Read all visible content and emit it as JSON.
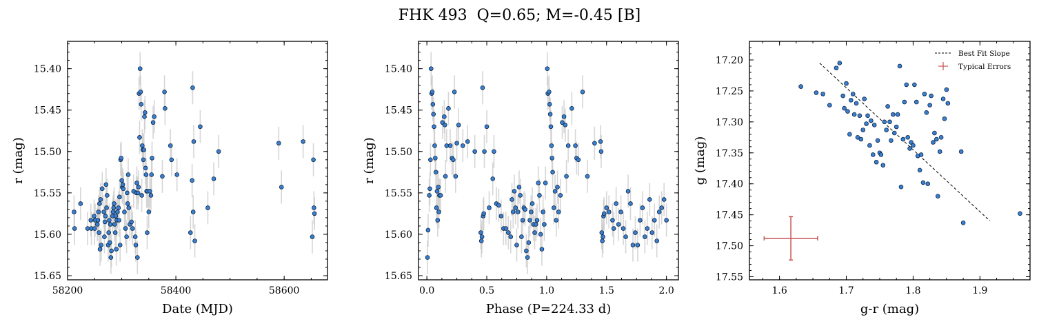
{
  "figure": {
    "title": "FHK 493  Q=0.65; M=-0.45 [B]"
  },
  "colors": {
    "point": "#3a7fd0",
    "point_edge": "#0c2340",
    "errorbar": "#c8c8c8",
    "typical_error": "#c9504f",
    "fit_line": "#000000"
  },
  "chart_data": [
    {
      "type": "scatter",
      "panel": "light-curve-date",
      "title": "",
      "xlabel": "Date (MJD)",
      "ylabel": "r (mag)",
      "xlim": [
        58200,
        58680
      ],
      "ylim": [
        15.655,
        15.367
      ],
      "y_inverted": true,
      "xticks": [
        58200,
        58400,
        58600
      ],
      "yticks": [
        15.4,
        15.45,
        15.5,
        15.55,
        15.6,
        15.65
      ],
      "ytick_labels": [
        "15.40",
        "15.45",
        "15.50",
        "15.55",
        "15.60",
        "15.65"
      ],
      "y_error": 0.02,
      "grid": false,
      "x": [
        58212,
        58213,
        58224,
        58237,
        58243,
        58244,
        58249,
        58250,
        58251,
        58255,
        58256,
        58257,
        58258,
        58259,
        58260,
        58261,
        58262,
        58264,
        58267,
        58268,
        58269,
        58270,
        58271,
        58272,
        58273,
        58275,
        58276,
        58277,
        58278,
        58279,
        58280,
        58281,
        58283,
        58284,
        58285,
        58286,
        58287,
        58288,
        58289,
        58290,
        58291,
        58292,
        58294,
        58295,
        58296,
        58297,
        58298,
        58299,
        58300,
        58301,
        58302,
        58303,
        58305,
        58307,
        58309,
        58310,
        58311,
        58312,
        58313,
        58315,
        58318,
        58320,
        58322,
        58325,
        58326,
        58327,
        58328,
        58329,
        58330,
        58331,
        58332,
        58333,
        58334,
        58335,
        58336,
        58337,
        58338,
        58339,
        58340,
        58341,
        58342,
        58343,
        58344,
        58345,
        58346,
        58347,
        58348,
        58350,
        58352,
        58354,
        58355,
        58356,
        58358,
        58360,
        58375,
        58379,
        58380,
        58390,
        58392,
        58402,
        58427,
        58430,
        58431,
        58432,
        58433,
        58435,
        58445,
        58459,
        58470,
        58479,
        58590,
        58595,
        58635,
        58652,
        58654,
        58655,
        58656
      ],
      "y": [
        15.573,
        15.593,
        15.563,
        15.593,
        15.583,
        15.593,
        15.578,
        15.593,
        15.583,
        15.588,
        15.583,
        15.573,
        15.598,
        15.563,
        15.618,
        15.558,
        15.613,
        15.545,
        15.573,
        15.603,
        15.585,
        15.578,
        15.54,
        15.568,
        15.553,
        15.613,
        15.598,
        15.583,
        15.61,
        15.588,
        15.628,
        15.62,
        15.578,
        15.573,
        15.568,
        15.563,
        15.588,
        15.598,
        15.578,
        15.618,
        15.583,
        15.573,
        15.568,
        15.583,
        15.555,
        15.613,
        15.51,
        15.508,
        15.535,
        15.543,
        15.54,
        15.545,
        15.573,
        15.593,
        15.603,
        15.55,
        15.563,
        15.528,
        15.568,
        15.588,
        15.585,
        15.593,
        15.548,
        15.603,
        15.613,
        15.55,
        15.538,
        15.628,
        15.55,
        15.543,
        15.43,
        15.483,
        15.4,
        15.428,
        15.443,
        15.553,
        15.493,
        15.498,
        15.51,
        15.498,
        15.458,
        15.453,
        15.52,
        15.528,
        15.548,
        15.598,
        15.548,
        15.573,
        15.548,
        15.553,
        15.528,
        15.508,
        15.465,
        15.458,
        15.53,
        15.428,
        15.448,
        15.493,
        15.51,
        15.528,
        15.598,
        15.535,
        15.423,
        15.573,
        15.488,
        15.608,
        15.47,
        15.568,
        15.533,
        15.5,
        15.49,
        15.543,
        15.488,
        15.603,
        15.51,
        15.568,
        15.575
      ]
    },
    {
      "type": "scatter",
      "panel": "light-curve-phase",
      "title": "",
      "xlabel": "Phase (P=224.33 d)",
      "ylabel": "r (mag)",
      "xlim": [
        -0.07,
        2.1
      ],
      "ylim": [
        15.655,
        15.367
      ],
      "y_inverted": true,
      "xticks": [
        0.0,
        0.5,
        1.0,
        1.5,
        2.0
      ],
      "xtick_labels": [
        "0.0",
        "0.5",
        "1.0",
        "1.5",
        "2.0"
      ],
      "yticks": [
        15.4,
        15.45,
        15.5,
        15.55,
        15.6,
        15.65
      ],
      "ytick_labels": [
        "15.40",
        "15.45",
        "15.50",
        "15.55",
        "15.60",
        "15.65"
      ],
      "y_error": 0.02,
      "grid": false,
      "x": [
        0.005,
        0.01,
        0.02,
        0.025,
        0.03,
        0.035,
        0.04,
        0.045,
        0.05,
        0.055,
        0.06,
        0.065,
        0.07,
        0.075,
        0.08,
        0.085,
        0.09,
        0.095,
        0.1,
        0.105,
        0.115,
        0.13,
        0.145,
        0.15,
        0.155,
        0.165,
        0.18,
        0.195,
        0.21,
        0.22,
        0.23,
        0.24,
        0.25,
        0.265,
        0.3,
        0.34,
        0.4,
        0.45,
        0.455,
        0.46,
        0.465,
        0.47,
        0.475,
        0.48,
        0.5,
        0.52,
        0.55,
        0.56,
        0.58,
        0.6,
        0.62,
        0.64,
        0.66,
        0.68,
        0.7,
        0.71,
        0.72,
        0.73,
        0.74,
        0.75,
        0.76,
        0.77,
        0.78,
        0.79,
        0.8,
        0.81,
        0.82,
        0.83,
        0.84,
        0.85,
        0.86,
        0.87,
        0.88,
        0.89,
        0.9,
        0.91,
        0.92,
        0.93,
        0.94,
        0.95,
        0.96,
        0.97,
        0.98,
        0.99,
        1.005,
        1.01,
        1.02,
        1.025,
        1.03,
        1.035,
        1.04,
        1.045,
        1.05,
        1.06,
        1.07,
        1.08,
        1.09,
        1.1,
        1.115,
        1.13,
        1.145,
        1.155,
        1.165,
        1.18,
        1.21,
        1.24,
        1.25,
        1.265,
        1.3,
        1.34,
        1.4,
        1.45,
        1.455,
        1.46,
        1.465,
        1.47,
        1.475,
        1.48,
        1.5,
        1.52,
        1.55,
        1.56,
        1.58,
        1.6,
        1.62,
        1.64,
        1.66,
        1.68,
        1.7,
        1.72,
        1.74,
        1.76,
        1.78,
        1.8,
        1.82,
        1.84,
        1.86,
        1.88,
        1.9,
        1.92,
        1.94,
        1.96,
        1.98,
        2.0
      ],
      "y": [
        15.628,
        15.595,
        15.553,
        15.545,
        15.51,
        15.4,
        15.43,
        15.428,
        15.443,
        15.455,
        15.47,
        15.493,
        15.508,
        15.525,
        15.568,
        15.548,
        15.583,
        15.543,
        15.573,
        15.553,
        15.553,
        15.465,
        15.458,
        15.468,
        15.53,
        15.493,
        15.448,
        15.493,
        15.508,
        15.51,
        15.428,
        15.53,
        15.49,
        15.468,
        15.493,
        15.488,
        15.5,
        15.598,
        15.608,
        15.603,
        15.423,
        15.578,
        15.575,
        15.5,
        15.47,
        15.568,
        15.533,
        15.5,
        15.563,
        15.565,
        15.578,
        15.593,
        15.593,
        15.598,
        15.603,
        15.558,
        15.573,
        15.548,
        15.568,
        15.613,
        15.573,
        15.543,
        15.553,
        15.603,
        15.583,
        15.568,
        15.57,
        15.62,
        15.628,
        15.61,
        15.583,
        15.573,
        15.563,
        15.588,
        15.598,
        15.588,
        15.583,
        15.538,
        15.553,
        15.6,
        15.618,
        15.573,
        15.588,
        15.538,
        15.4,
        15.43,
        15.428,
        15.443,
        15.455,
        15.47,
        15.493,
        15.508,
        15.525,
        15.568,
        15.548,
        15.583,
        15.543,
        15.573,
        15.553,
        15.465,
        15.458,
        15.468,
        15.53,
        15.493,
        15.448,
        15.493,
        15.508,
        15.51,
        15.428,
        15.53,
        15.49,
        15.488,
        15.5,
        15.598,
        15.608,
        15.603,
        15.578,
        15.575,
        15.568,
        15.573,
        15.583,
        15.593,
        15.563,
        15.588,
        15.573,
        15.593,
        15.603,
        15.548,
        15.563,
        15.613,
        15.598,
        15.613,
        15.583,
        15.568,
        15.603,
        15.593,
        15.558,
        15.598,
        15.583,
        15.608,
        15.573,
        15.568,
        15.558,
        15.583
      ]
    },
    {
      "type": "scatter",
      "panel": "color-magnitude",
      "title": "",
      "xlabel": "g-r (mag)",
      "ylabel": "g (mag)",
      "xlim": [
        1.555,
        1.975
      ],
      "ylim": [
        17.555,
        17.17
      ],
      "y_inverted": true,
      "xticks": [
        1.6,
        1.7,
        1.8,
        1.9
      ],
      "xtick_labels": [
        "1.6",
        "1.7",
        "1.8",
        "1.9"
      ],
      "yticks": [
        17.2,
        17.25,
        17.3,
        17.35,
        17.4,
        17.45,
        17.5,
        17.55
      ],
      "ytick_labels": [
        "17.20",
        "17.25",
        "17.30",
        "17.35",
        "17.40",
        "17.45",
        "17.50",
        "17.55"
      ],
      "grid": false,
      "legend": {
        "position": "top-right",
        "entries": [
          "Best Fit Slope",
          "Typical Errors"
        ]
      },
      "fit_line": {
        "x": [
          1.66,
          1.915
        ],
        "y": [
          17.205,
          17.46
        ]
      },
      "typical_error": {
        "x": 1.617,
        "y": 17.488,
        "xerr": 0.04,
        "yerr": 0.035
      },
      "x": [
        1.632,
        1.655,
        1.665,
        1.675,
        1.685,
        1.69,
        1.695,
        1.697,
        1.7,
        1.702,
        1.705,
        1.707,
        1.71,
        1.712,
        1.715,
        1.717,
        1.72,
        1.722,
        1.725,
        1.727,
        1.73,
        1.732,
        1.735,
        1.737,
        1.74,
        1.742,
        1.745,
        1.747,
        1.75,
        1.752,
        1.755,
        1.757,
        1.76,
        1.762,
        1.765,
        1.767,
        1.77,
        1.772,
        1.775,
        1.777,
        1.78,
        1.782,
        1.785,
        1.787,
        1.79,
        1.792,
        1.795,
        1.797,
        1.8,
        1.802,
        1.805,
        1.807,
        1.81,
        1.812,
        1.815,
        1.817,
        1.82,
        1.822,
        1.825,
        1.827,
        1.83,
        1.832,
        1.835,
        1.837,
        1.84,
        1.842,
        1.845,
        1.847,
        1.85,
        1.852,
        1.872,
        1.875,
        1.96
      ],
      "y": [
        17.243,
        17.253,
        17.255,
        17.273,
        17.213,
        17.205,
        17.258,
        17.278,
        17.238,
        17.283,
        17.32,
        17.265,
        17.255,
        17.288,
        17.27,
        17.325,
        17.29,
        17.328,
        17.313,
        17.263,
        17.303,
        17.29,
        17.338,
        17.298,
        17.353,
        17.305,
        17.365,
        17.33,
        17.35,
        17.353,
        17.37,
        17.3,
        17.313,
        17.275,
        17.3,
        17.33,
        17.288,
        17.318,
        17.308,
        17.288,
        17.21,
        17.405,
        17.328,
        17.268,
        17.24,
        17.325,
        17.343,
        17.333,
        17.338,
        17.24,
        17.268,
        17.355,
        17.378,
        17.353,
        17.398,
        17.255,
        17.285,
        17.4,
        17.273,
        17.258,
        17.333,
        17.318,
        17.328,
        17.42,
        17.348,
        17.325,
        17.263,
        17.295,
        17.248,
        17.27,
        17.348,
        17.463,
        17.448
      ]
    }
  ]
}
